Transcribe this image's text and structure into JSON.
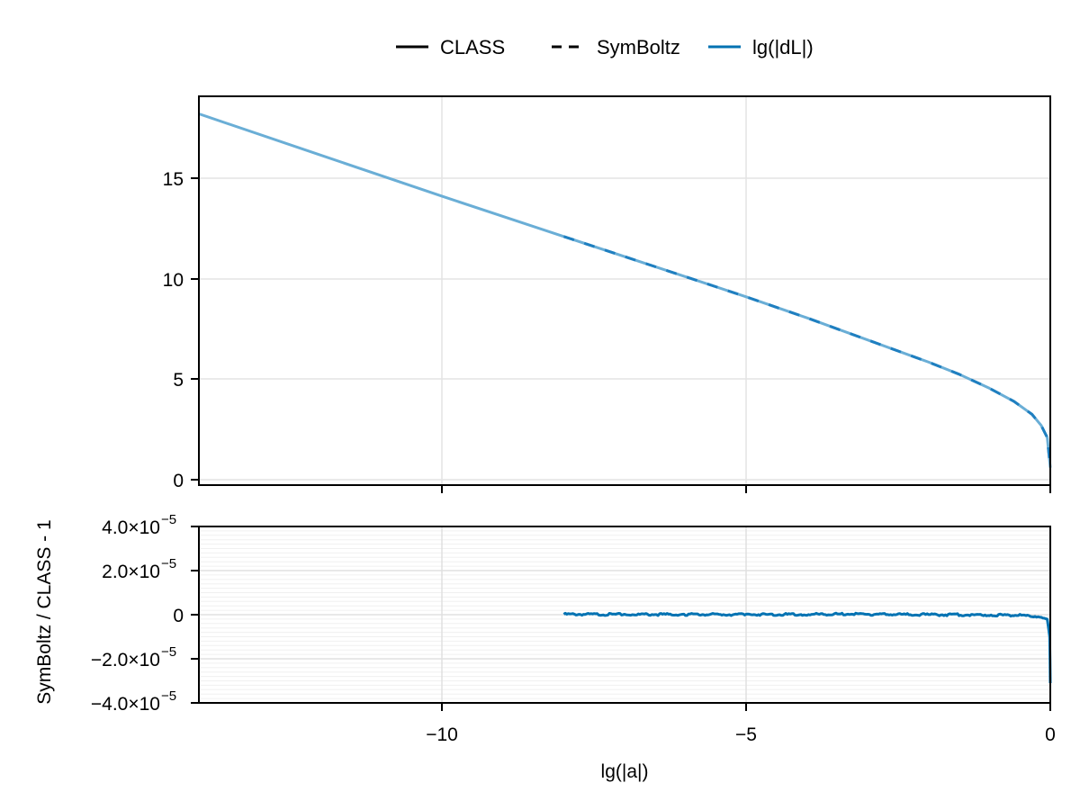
{
  "chart_data": [
    {
      "type": "line",
      "panel": "top",
      "title": "",
      "xlabel": "",
      "ylabel": "",
      "xlim": [
        -14,
        0
      ],
      "ylim": [
        -0.3,
        19.0
      ],
      "grid": true,
      "xticks": [
        -10,
        -5,
        0
      ],
      "xtick_labels_visible": false,
      "yticks": [
        0,
        5,
        10,
        15
      ],
      "ytick_labels": [
        "0",
        "5",
        "10",
        "15"
      ],
      "legend": {
        "position": "top-center-outside",
        "entries": [
          {
            "label": "CLASS",
            "style": "solid",
            "color": "#000000"
          },
          {
            "label": "SymBoltz",
            "style": "dashed",
            "color": "#000000"
          },
          {
            "label": "lg(|dL|)",
            "style": "solid",
            "color": "#0072b2"
          }
        ]
      },
      "series": [
        {
          "name": "CLASS lg(|dL|)",
          "style": "solid",
          "color": "#6aaed6",
          "x": [
            -14,
            -12,
            -10,
            -8,
            -6,
            -5,
            -4,
            -3,
            -2,
            -1.5,
            -1,
            -0.6,
            -0.3,
            -0.15,
            -0.05,
            0
          ],
          "y": [
            18.2,
            16.15,
            14.1,
            12.1,
            10.1,
            9.1,
            8.05,
            6.95,
            5.85,
            5.25,
            4.55,
            3.9,
            3.25,
            2.7,
            2.1,
            0.6
          ]
        },
        {
          "name": "SymBoltz lg(|dL|)",
          "style": "dashed",
          "color": "#1f7fc0",
          "x": [
            -8,
            -6,
            -5,
            -4,
            -3,
            -2,
            -1.5,
            -1,
            -0.6,
            -0.3,
            -0.15,
            -0.05,
            0
          ],
          "y": [
            12.1,
            10.1,
            9.1,
            8.05,
            6.95,
            5.85,
            5.25,
            4.55,
            3.9,
            3.25,
            2.7,
            2.1,
            0.6
          ]
        }
      ]
    },
    {
      "type": "line",
      "panel": "bottom",
      "title": "",
      "xlabel": "lg(|a|)",
      "ylabel": "SymBoltz / CLASS - 1",
      "xlim": [
        -14,
        0
      ],
      "ylim": [
        -4e-05,
        4e-05
      ],
      "grid": true,
      "minor_grid": true,
      "xticks": [
        -10,
        -5,
        0
      ],
      "xtick_labels": [
        "−10",
        "−5",
        "0"
      ],
      "yticks": [
        -4e-05,
        -2e-05,
        0,
        2e-05,
        4e-05
      ],
      "ytick_labels": [
        {
          "mant": "−4.0×10",
          "exp": "−5"
        },
        {
          "mant": "−2.0×10",
          "exp": "−5"
        },
        {
          "mant": "0",
          "exp": ""
        },
        {
          "mant": "2.0×10",
          "exp": "−5"
        },
        {
          "mant": "4.0×10",
          "exp": "−5"
        }
      ],
      "series": [
        {
          "name": "lg(|dL|)",
          "style": "solid",
          "color": "#0072b2",
          "x": [
            -8,
            -7,
            -6,
            -5,
            -4,
            -3.5,
            -3,
            -2,
            -1,
            -0.5,
            -0.2,
            -0.05,
            -0.01,
            0
          ],
          "y": [
            2e-07,
            1e-07,
            1e-07,
            1e-07,
            1e-07,
            3e-07,
            2e-07,
            0.0,
            -1e-07,
            -3e-07,
            -8e-07,
            -2e-06,
            -1e-05,
            -3.1e-05
          ]
        }
      ]
    }
  ],
  "legend": {
    "items": [
      {
        "label": "CLASS"
      },
      {
        "label": "SymBoltz"
      },
      {
        "label": "lg(|dL|)"
      }
    ]
  },
  "axes": {
    "top": {
      "ytick_labels": [
        "0",
        "5",
        "10",
        "15"
      ]
    },
    "bottom": {
      "ylabel": "SymBoltz / CLASS - 1",
      "xlabel": "lg(|a|)",
      "xtick_labels": [
        "−10",
        "−5",
        "0"
      ],
      "ytick_mant": [
        "4.0×10",
        "2.0×10",
        "0",
        "−2.0×10",
        "−4.0×10"
      ],
      "ytick_exp": [
        "−5",
        "−5",
        "",
        "−5",
        "−5"
      ]
    }
  },
  "colors": {
    "class_line": "#6aaed6",
    "symboltz_dash": "#1f7fc0",
    "residual": "#0072b2",
    "grid": "#e3e3e3",
    "minor_grid": "#f0f0f0",
    "frame": "#000000"
  }
}
